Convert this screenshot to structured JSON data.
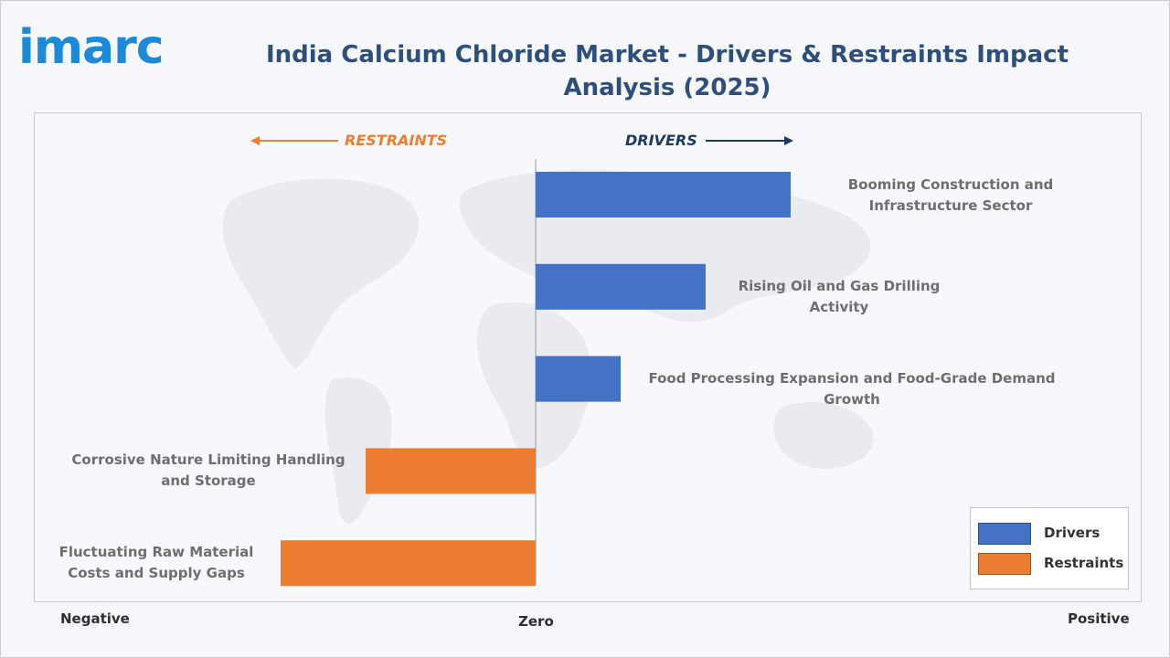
{
  "brand": {
    "logo_text": "imarc",
    "logo_color": "#1c8ad8"
  },
  "title": "India Calcium Chloride Market - Drivers & Restraints Impact Analysis (2025)",
  "colors": {
    "title": "#2e4f7c",
    "drivers": "#4472c4",
    "restraints": "#ed7d31",
    "drivers_arrow": "#1f3a5f",
    "restraints_arrow": "#ed7d31"
  },
  "direction_labels": {
    "restraints": "RESTRAINTS",
    "drivers": "DRIVERS"
  },
  "axis_labels": {
    "negative": "Negative",
    "zero": "Zero",
    "positive": "Positive"
  },
  "legend": [
    {
      "label": "Drivers",
      "color": "#4472c4"
    },
    {
      "label": "Restraints",
      "color": "#ed7d31"
    }
  ],
  "chart_data": {
    "type": "bar",
    "orientation": "horizontal",
    "title": "India Calcium Chloride Market - Drivers & Restraints Impact Analysis (2025)",
    "xlim": [
      -3,
      3
    ],
    "grid": false,
    "legend_position": "bottom-right",
    "categories": [
      "Booming Construction and Infrastructure Sector",
      "Rising Oil and Gas Drilling Activity",
      "Food Processing Expansion and Food-Grade Demand Growth",
      "Corrosive Nature Limiting Handling and Storage",
      "Fluctuating Raw Material Costs and Supply Gaps"
    ],
    "series": [
      {
        "name": "Drivers",
        "values": [
          3,
          2,
          1,
          null,
          null
        ]
      },
      {
        "name": "Restraints",
        "values": [
          null,
          null,
          null,
          -2,
          -3
        ]
      }
    ]
  }
}
